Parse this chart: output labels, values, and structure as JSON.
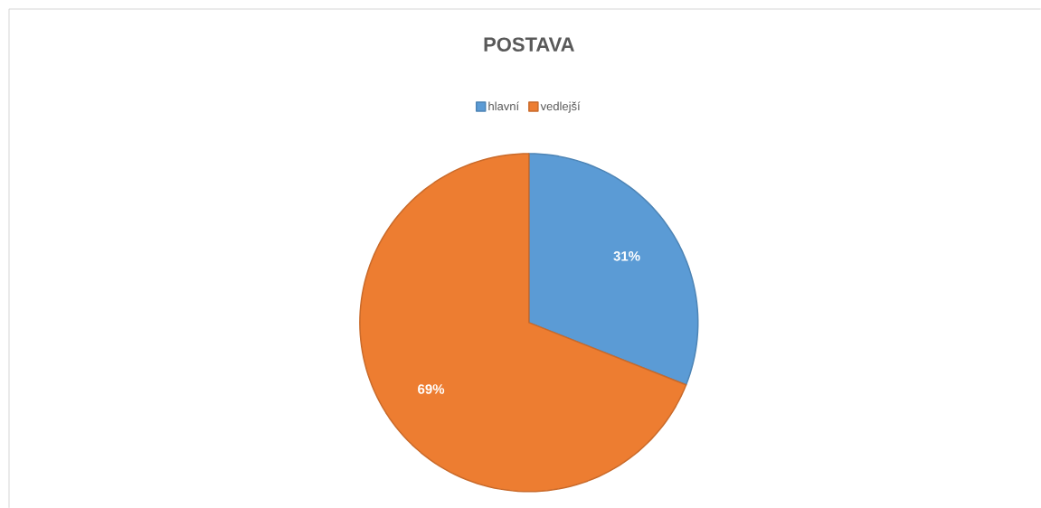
{
  "chart_data": {
    "type": "pie",
    "title": "POSTAVA",
    "categories": [
      "hlavní",
      "vedlejší"
    ],
    "values": [
      31,
      69
    ],
    "colors": [
      "#5b9bd5",
      "#ed7d31"
    ],
    "value_labels": [
      "31%",
      "69%"
    ],
    "legend": "top"
  }
}
